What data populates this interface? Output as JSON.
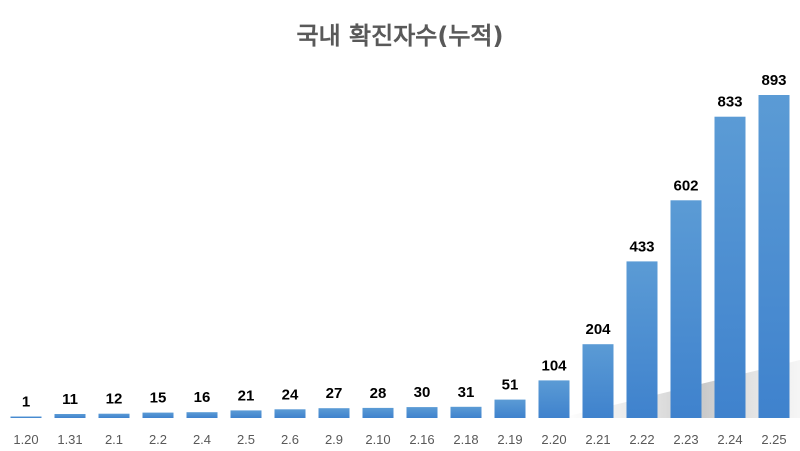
{
  "chart_data": {
    "type": "bar",
    "title": "국내 확진자수(누적)",
    "categories": [
      "1.20",
      "1.31",
      "2.1",
      "2.2",
      "2.4",
      "2.5",
      "2.6",
      "2.9",
      "2.10",
      "2.16",
      "2.18",
      "2.19",
      "2.20",
      "2.21",
      "2.22",
      "2.23",
      "2.24",
      "2.25"
    ],
    "values": [
      1,
      11,
      12,
      15,
      16,
      21,
      24,
      27,
      28,
      30,
      31,
      51,
      104,
      204,
      433,
      602,
      833,
      893
    ],
    "ylim": [
      0,
      893
    ],
    "grid": false,
    "legend": "none",
    "colors": {
      "bar_top": "#5b9bd5",
      "bar_bottom": "#3f82cd",
      "title": "#595959",
      "tick": "#595959"
    }
  }
}
